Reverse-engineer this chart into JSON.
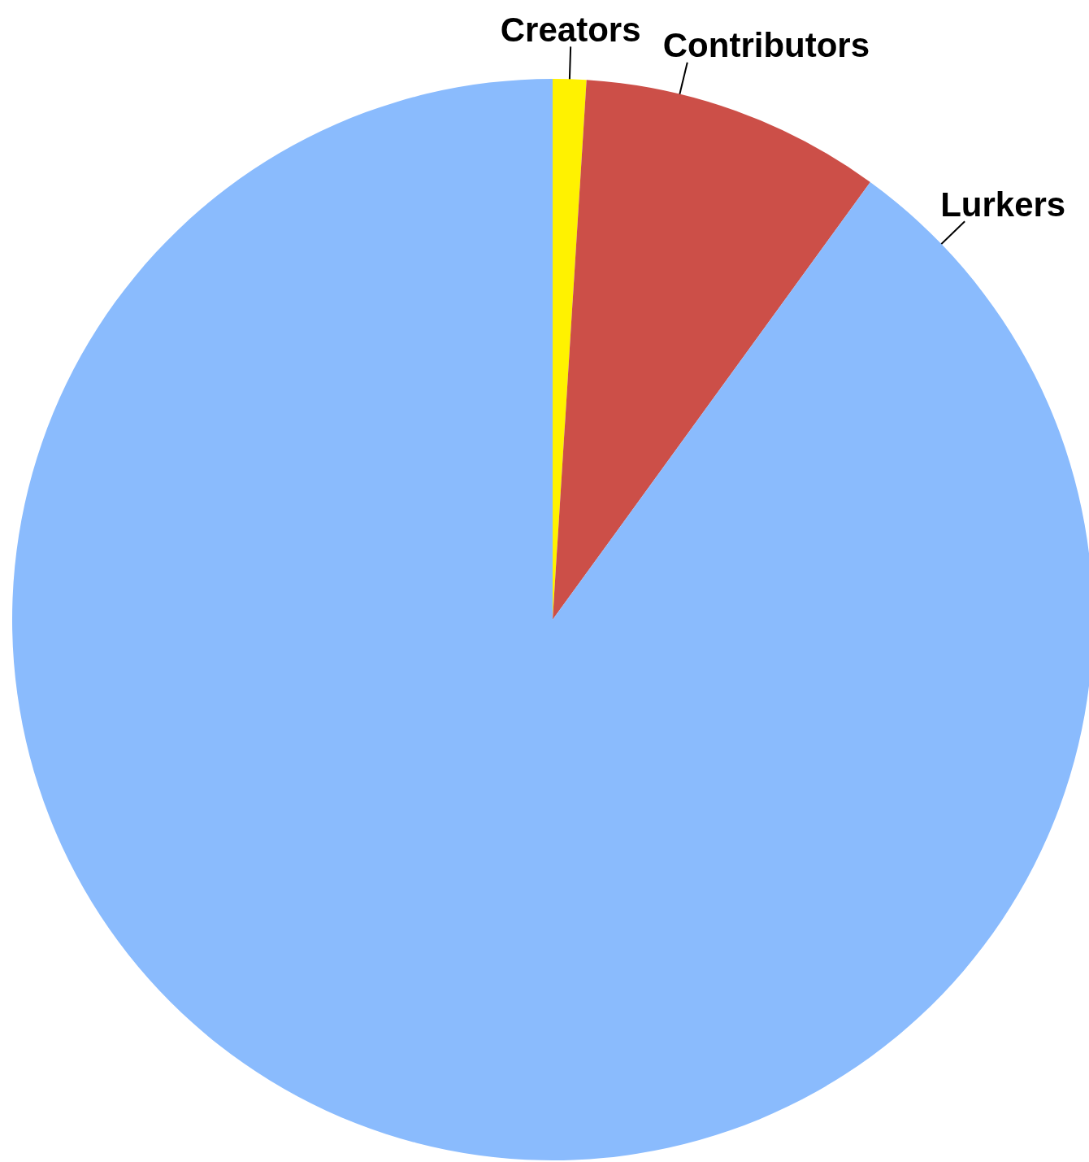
{
  "chart_data": {
    "type": "pie",
    "categories": [
      "Creators",
      "Contributors",
      "Lurkers"
    ],
    "values": [
      1,
      9,
      90
    ],
    "colors": [
      "#fff200",
      "#cc4f48",
      "#8abbfd"
    ]
  }
}
